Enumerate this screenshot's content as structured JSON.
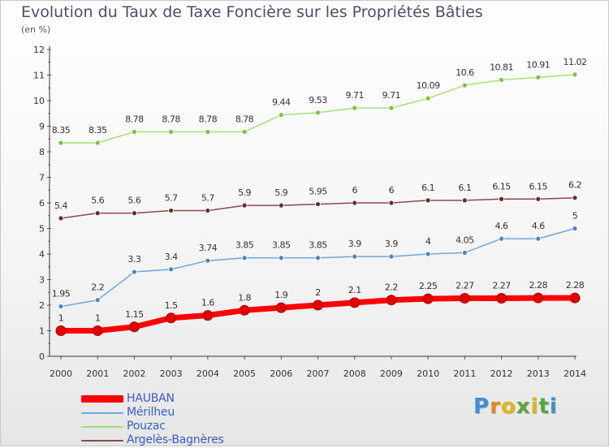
{
  "title": "Evolution du Taux de Taxe Foncière sur les Propriétés Bâties",
  "subtitle": "(en %)",
  "logo": {
    "letters": [
      "P",
      "r",
      "o",
      "x",
      "i",
      "t",
      "i"
    ],
    "colors": [
      "#3d8fd6",
      "#e08a1c",
      "#e0b419",
      "#5aa53c",
      "#e0b419",
      "#5aa53c",
      "#3d8fd6"
    ]
  },
  "chart_data": {
    "type": "line",
    "title": "Evolution du Taux de Taxe Foncière sur les Propriétés Bâties",
    "ylabel": "(en %)",
    "xlabel": "",
    "x": [
      "2000",
      "2001",
      "2002",
      "2003",
      "2004",
      "2005",
      "2006",
      "2007",
      "2008",
      "2009",
      "2010",
      "2011",
      "2012",
      "2013",
      "2014"
    ],
    "ylim": [
      0,
      12
    ],
    "yticks": [
      "0",
      "1",
      "2",
      "3",
      "4",
      "5",
      "6",
      "7",
      "8",
      "9",
      "10",
      "11",
      "12"
    ],
    "grid": false,
    "legend": "bottom-left",
    "series": [
      {
        "name": "HAUBAN",
        "color": "#ff0000",
        "marker_color": "#e00000",
        "width": 7,
        "values": [
          1,
          1,
          1.15,
          1.5,
          1.6,
          1.8,
          1.9,
          2,
          2.1,
          2.2,
          2.25,
          2.27,
          2.27,
          2.28,
          2.28
        ],
        "labels": [
          "1",
          "1",
          "1.15",
          "1.5",
          "1.6",
          "1.8",
          "1.9",
          "2",
          "2.1",
          "2.2",
          "2.25",
          "2.27",
          "2.27",
          "2.28",
          "2.28"
        ]
      },
      {
        "name": "Mérilheu",
        "color": "#6fa8dc",
        "marker_color": "#4a86c8",
        "width": 1.5,
        "values": [
          1.95,
          2.2,
          3.3,
          3.4,
          3.74,
          3.85,
          3.85,
          3.85,
          3.9,
          3.9,
          4,
          4.05,
          4.6,
          4.6,
          5
        ],
        "labels": [
          "1.95",
          "2.2",
          "3.3",
          "3.4",
          "3.74",
          "3.85",
          "3.85",
          "3.85",
          "3.9",
          "3.9",
          "4",
          "4.05",
          "4.6",
          "4.6",
          "5"
        ]
      },
      {
        "name": "Pouzac",
        "color": "#a6e07a",
        "marker_color": "#7ac143",
        "width": 1.5,
        "values": [
          8.35,
          8.35,
          8.78,
          8.78,
          8.78,
          8.78,
          9.44,
          9.53,
          9.71,
          9.71,
          10.09,
          10.6,
          10.81,
          10.91,
          11.02
        ],
        "labels": [
          "8.35",
          "8.35",
          "8.78",
          "8.78",
          "8.78",
          "8.78",
          "9.44",
          "9.53",
          "9.71",
          "9.71",
          "10.09",
          "10.6",
          "10.81",
          "10.91",
          "11.02"
        ]
      },
      {
        "name": "Argelès-Bagnères",
        "color": "#8a4a4a",
        "marker_color": "#6b2a2a",
        "width": 1.5,
        "values": [
          5.4,
          5.6,
          5.6,
          5.7,
          5.7,
          5.9,
          5.9,
          5.95,
          6,
          6,
          6.1,
          6.1,
          6.15,
          6.15,
          6.2
        ],
        "labels": [
          "5.4",
          "5.6",
          "5.6",
          "5.7",
          "5.7",
          "5.9",
          "5.9",
          "5.95",
          "6",
          "6",
          "6.1",
          "6.1",
          "6.15",
          "6.15",
          "6.2"
        ]
      }
    ]
  }
}
